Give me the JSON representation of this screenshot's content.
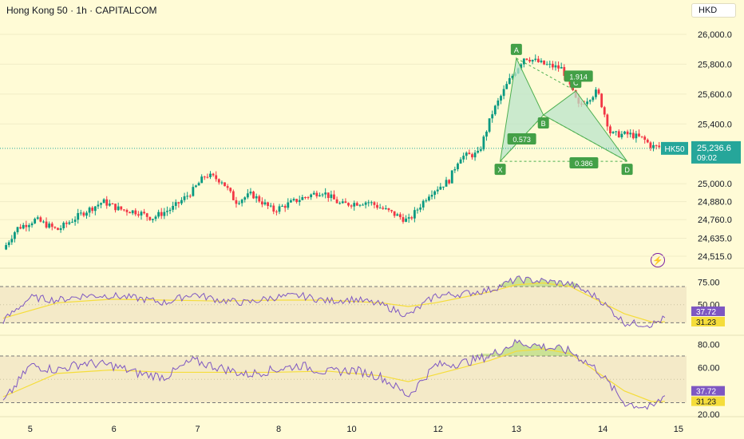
{
  "header": {
    "title": "Hong Kong 50 · 1h · CAPITALCOM",
    "currency": "HKD"
  },
  "price_tag": {
    "symbol": "HK50",
    "value": "25,236.6",
    "countdown": "09:02"
  },
  "icons": {
    "alert": "lightning-icon"
  },
  "colors": {
    "background": "#fffbd6",
    "up_candle": "#089981",
    "down_candle": "#f23645",
    "pattern_fill": "#b9e4c9",
    "pattern_line": "#4caf50",
    "rsi_line": "#7e57c2",
    "rsi_ma": "#f5dd3a",
    "price_line": "#26a69a"
  },
  "chart_data": [
    {
      "type": "candlestick",
      "title": "Hong Kong 50 · 1h · CAPITALCOM",
      "x_ticks": [
        "5",
        "6",
        "7",
        "8",
        "10",
        "12",
        "13",
        "14",
        "15"
      ],
      "y_ticks": [
        "26,000.0",
        "25,800.0",
        "25,600.0",
        "25,400.0",
        "25,000.0",
        "24,880.0",
        "24,760.0",
        "24,635.0",
        "24,515.0"
      ],
      "ylim": [
        24440,
        26080
      ],
      "last_price": 25236.6,
      "close_path": [
        [
          0,
          24560
        ],
        [
          0.5,
          24700
        ],
        [
          1.2,
          24760
        ],
        [
          2.0,
          24690
        ],
        [
          3.0,
          24810
        ],
        [
          3.7,
          24880
        ],
        [
          4.3,
          24830
        ],
        [
          5.0,
          24810
        ],
        [
          5.5,
          24770
        ],
        [
          6.3,
          24840
        ],
        [
          7.0,
          24950
        ],
        [
          7.5,
          25060
        ],
        [
          8.1,
          25020
        ],
        [
          8.6,
          24880
        ],
        [
          9.2,
          24930
        ],
        [
          10.0,
          24820
        ],
        [
          11.0,
          24900
        ],
        [
          11.8,
          24950
        ],
        [
          12.5,
          24860
        ],
        [
          13.5,
          24880
        ],
        [
          14.2,
          24820
        ],
        [
          15.0,
          24750
        ],
        [
          15.8,
          24940
        ],
        [
          16.5,
          25020
        ],
        [
          16.9,
          25180
        ],
        [
          17.6,
          25200
        ],
        [
          18.1,
          25470
        ],
        [
          18.7,
          25680
        ],
        [
          19.3,
          25850
        ],
        [
          20.0,
          25800
        ],
        [
          20.7,
          25770
        ],
        [
          21.3,
          25520
        ],
        [
          22.0,
          25620
        ],
        [
          22.5,
          25330
        ],
        [
          23.2,
          25330
        ],
        [
          23.7,
          25300
        ],
        [
          24.0,
          25250
        ],
        [
          24.5,
          25240
        ]
      ],
      "x_tick_positions": [
        1,
        4.1,
        7.2,
        10.2,
        12.9,
        16.1,
        19.0,
        22.2,
        25.0
      ],
      "harmonic_pattern": {
        "points": [
          {
            "label": "X",
            "x": 18.4,
            "y": 25150
          },
          {
            "label": "A",
            "x": 19.0,
            "y": 25840
          },
          {
            "label": "B",
            "x": 20.0,
            "y": 25460
          },
          {
            "label": "C",
            "x": 21.2,
            "y": 25620
          },
          {
            "label": "D",
            "x": 23.1,
            "y": 25150
          }
        ],
        "ratios": [
          {
            "label": "0.573",
            "x": 19.2,
            "y": 25300
          },
          {
            "label": "0.386",
            "x": 21.5,
            "y": 25140
          },
          {
            "label": "1.914",
            "x": 21.3,
            "y": 25720
          }
        ]
      }
    },
    {
      "type": "line",
      "name": "RSI panel 1",
      "y_ticks": [
        "75.00",
        "50.00"
      ],
      "ylim": [
        18,
        85
      ],
      "bands": [
        70,
        30
      ],
      "rsi_value": "37.72",
      "ma_value": "31.23",
      "rsi_path": [
        [
          0,
          32
        ],
        [
          1,
          58
        ],
        [
          2,
          55
        ],
        [
          3,
          60
        ],
        [
          4,
          60
        ],
        [
          5,
          57
        ],
        [
          6,
          52
        ],
        [
          7,
          62
        ],
        [
          8,
          55
        ],
        [
          9,
          52
        ],
        [
          10,
          58
        ],
        [
          11,
          60
        ],
        [
          12,
          54
        ],
        [
          13,
          56
        ],
        [
          14,
          50
        ],
        [
          15,
          38
        ],
        [
          16,
          60
        ],
        [
          17,
          62
        ],
        [
          18,
          66
        ],
        [
          19,
          78
        ],
        [
          20,
          76
        ],
        [
          21,
          73
        ],
        [
          22,
          58
        ],
        [
          23,
          30
        ],
        [
          24,
          28
        ],
        [
          24.5,
          35
        ]
      ],
      "ma_path": [
        [
          0,
          35
        ],
        [
          2,
          52
        ],
        [
          4,
          56
        ],
        [
          6,
          55
        ],
        [
          8,
          54
        ],
        [
          10,
          55
        ],
        [
          12,
          55
        ],
        [
          14,
          52
        ],
        [
          15,
          48
        ],
        [
          16,
          52
        ],
        [
          17,
          58
        ],
        [
          18,
          64
        ],
        [
          19,
          72
        ],
        [
          20,
          74
        ],
        [
          21,
          70
        ],
        [
          22,
          55
        ],
        [
          23,
          40
        ],
        [
          24,
          31
        ],
        [
          24.5,
          31
        ]
      ]
    },
    {
      "type": "line",
      "name": "RSI panel 2",
      "y_ticks": [
        "80.00",
        "60.00",
        "20.00"
      ],
      "ylim": [
        18,
        85
      ],
      "bands": [
        70,
        30
      ],
      "rsi_value": "37.72",
      "ma_value": "31.23",
      "rsi_path": [
        [
          0,
          30
        ],
        [
          1,
          62
        ],
        [
          2,
          58
        ],
        [
          3,
          64
        ],
        [
          4,
          62
        ],
        [
          5,
          55
        ],
        [
          6,
          52
        ],
        [
          7,
          66
        ],
        [
          8,
          60
        ],
        [
          9,
          54
        ],
        [
          10,
          58
        ],
        [
          11,
          62
        ],
        [
          12,
          56
        ],
        [
          13,
          58
        ],
        [
          14,
          52
        ],
        [
          15,
          36
        ],
        [
          16,
          62
        ],
        [
          17,
          64
        ],
        [
          18,
          70
        ],
        [
          19,
          82
        ],
        [
          20,
          78
        ],
        [
          21,
          74
        ],
        [
          22,
          58
        ],
        [
          23,
          30
        ],
        [
          24,
          25
        ],
        [
          24.5,
          36
        ]
      ],
      "ma_path": [
        [
          0,
          35
        ],
        [
          2,
          55
        ],
        [
          4,
          58
        ],
        [
          6,
          56
        ],
        [
          8,
          56
        ],
        [
          10,
          56
        ],
        [
          12,
          57
        ],
        [
          14,
          53
        ],
        [
          15,
          48
        ],
        [
          16,
          54
        ],
        [
          17,
          60
        ],
        [
          18,
          66
        ],
        [
          19,
          74
        ],
        [
          20,
          76
        ],
        [
          21,
          72
        ],
        [
          22,
          56
        ],
        [
          23,
          40
        ],
        [
          24,
          31
        ],
        [
          24.5,
          31
        ]
      ]
    }
  ]
}
